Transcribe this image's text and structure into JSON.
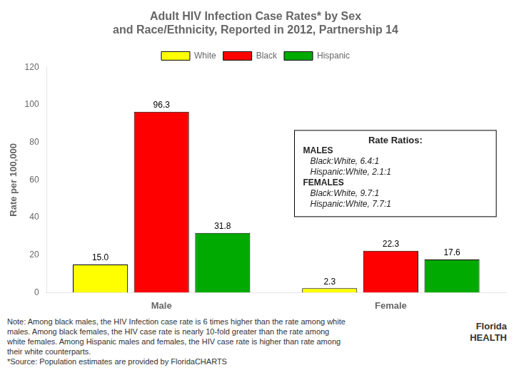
{
  "chart_data": {
    "type": "bar",
    "title": "Adult HIV Infection Case Rates* by Sex\nand Race/Ethnicity, Reported in 2012, Partnership 14",
    "y_label": "Rate per 100,000",
    "categories": [
      "Male",
      "Female"
    ],
    "series": [
      {
        "name": "White",
        "color": "#ffff00",
        "values": [
          15.0,
          2.3
        ],
        "value_labels": [
          "15.0",
          "2.3"
        ]
      },
      {
        "name": "Black",
        "color": "#ff0000",
        "values": [
          96.3,
          22.3
        ],
        "value_labels": [
          "96.3",
          "22.3"
        ]
      },
      {
        "name": "Hispanic",
        "color": "#00aa00",
        "values": [
          31.8,
          17.6
        ],
        "value_labels": [
          "31.8",
          "17.6"
        ]
      }
    ],
    "ylim": [
      0,
      120
    ],
    "yticks": [
      0,
      20,
      40,
      60,
      80,
      100,
      120
    ],
    "grid": false,
    "legend": "top",
    "data_labels": true,
    "annotations": [
      "Rate Ratios:\nMALES\n   Black:White, 6.4:1\n   Hispanic:White, 2.1:1\nFEMALES\n   Black:White, 9.7:1\n   Hispanic:White, 7.7:1",
      "Note: Among black males, the HIV Infection case rate is 6 times higher than the rate among white\nmales.  Among black females, the HIV case rate is nearly 10-fold greater than the rate among\nwhite females.  Among Hispanic males and females, the HIV case rate is higher than rate among\ntheir white counterparts.\n*Source: Population estimates are provided by FloridaCHARTS",
      "Florida\nHEALTH"
    ]
  }
}
